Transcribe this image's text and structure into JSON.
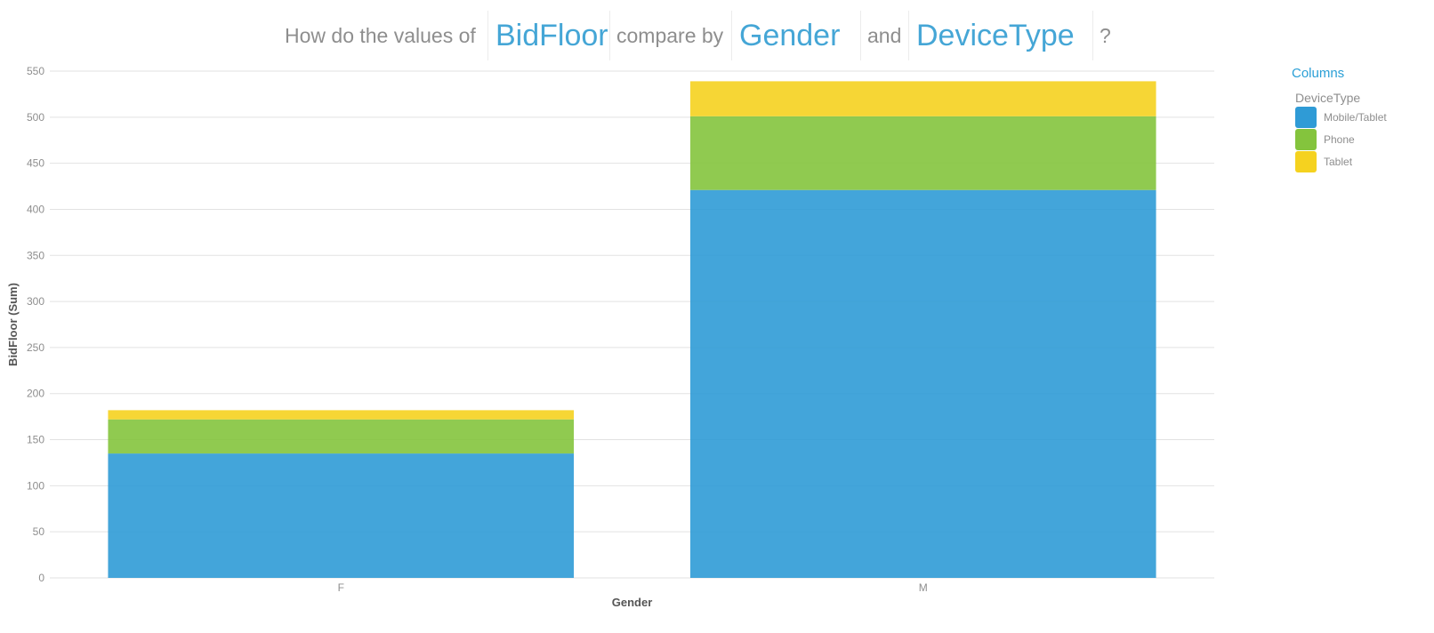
{
  "question": {
    "prefix": "How do the values of",
    "measure": "BidFloor",
    "middle": "compare by",
    "dimension1": "Gender",
    "conjunction": "and",
    "dimension2": "DeviceType",
    "suffix": "?"
  },
  "legend": {
    "title": "Columns",
    "subtitle": "DeviceType",
    "items": [
      {
        "label": "Mobile/Tablet",
        "color": "#2f9bd6"
      },
      {
        "label": "Phone",
        "color": "#84c43d"
      },
      {
        "label": "Tablet",
        "color": "#f5d21f"
      }
    ]
  },
  "chart_data": {
    "type": "bar",
    "stacked": true,
    "title": "",
    "xlabel": "Gender",
    "ylabel": "BidFloor (Sum)",
    "categories": [
      "F",
      "M"
    ],
    "series": [
      {
        "name": "Mobile/Tablet",
        "color": "#2f9bd6",
        "values": [
          135,
          421
        ]
      },
      {
        "name": "Phone",
        "color": "#84c43d",
        "values": [
          37,
          80
        ]
      },
      {
        "name": "Tablet",
        "color": "#f5d21f",
        "values": [
          10,
          38
        ]
      }
    ],
    "ylim": [
      0,
      550
    ],
    "yticks": [
      "0",
      "50",
      "100",
      "150",
      "200",
      "250",
      "300",
      "350",
      "400",
      "450",
      "500",
      "550"
    ],
    "grid": true,
    "legend_position": "right"
  }
}
